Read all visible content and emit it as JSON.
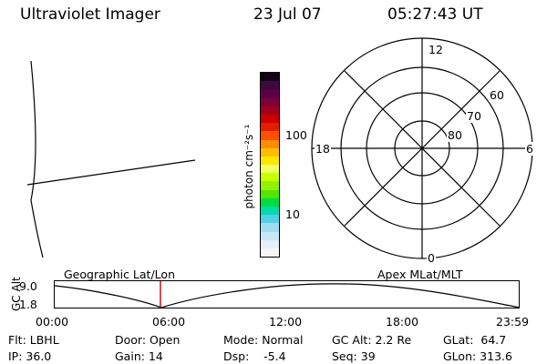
{
  "header": {
    "title": "Ultraviolet Imager",
    "date": "23 Jul 07",
    "time": "05:27:43 UT"
  },
  "colorbar": {
    "unit_label": "photon cm⁻²s⁻¹",
    "ticks": [
      "100",
      "10"
    ],
    "colors": [
      "#140014",
      "#3c0a3c",
      "#5a0046",
      "#7d0037",
      "#a0001e",
      "#c80000",
      "#e61e00",
      "#ff5000",
      "#ff8c00",
      "#ffbe00",
      "#ffe600",
      "#f0ff5a",
      "#c8ff00",
      "#96f000",
      "#50e600",
      "#00dc3c",
      "#00dcaa",
      "#50d2e6",
      "#a0dcf0",
      "#c8e6f5",
      "#e6f0fa",
      "#f5f5fa"
    ]
  },
  "polar": {
    "mlt_labels": {
      "top": "12",
      "left": "18",
      "right": "6",
      "bottom": "0"
    },
    "lat_labels": [
      "60",
      "70",
      "80"
    ]
  },
  "timeline": {
    "y_axis_label": "GC Alt",
    "y_ticks": [
      "9.0",
      "1.8"
    ],
    "left_caption": "Geographic Lat/Lon",
    "right_caption": "Apex MLat/MLT",
    "x_ticks": [
      "00:00",
      "06:00",
      "12:00",
      "18:00",
      "23:59"
    ],
    "marker_color": "#cc0000"
  },
  "status": {
    "flt": "Flt: LBHL",
    "door": "Door: Open",
    "mode": "Mode: Normal",
    "gcalt": "GC Alt: 2.2 Re",
    "glat": "GLat:  64.7",
    "ip": "IP: 36.0",
    "gain": "Gain: 14",
    "dsp": "Dsp:    -5.4",
    "seq": "Seq: 39",
    "glon": "GLon: 313.6"
  }
}
